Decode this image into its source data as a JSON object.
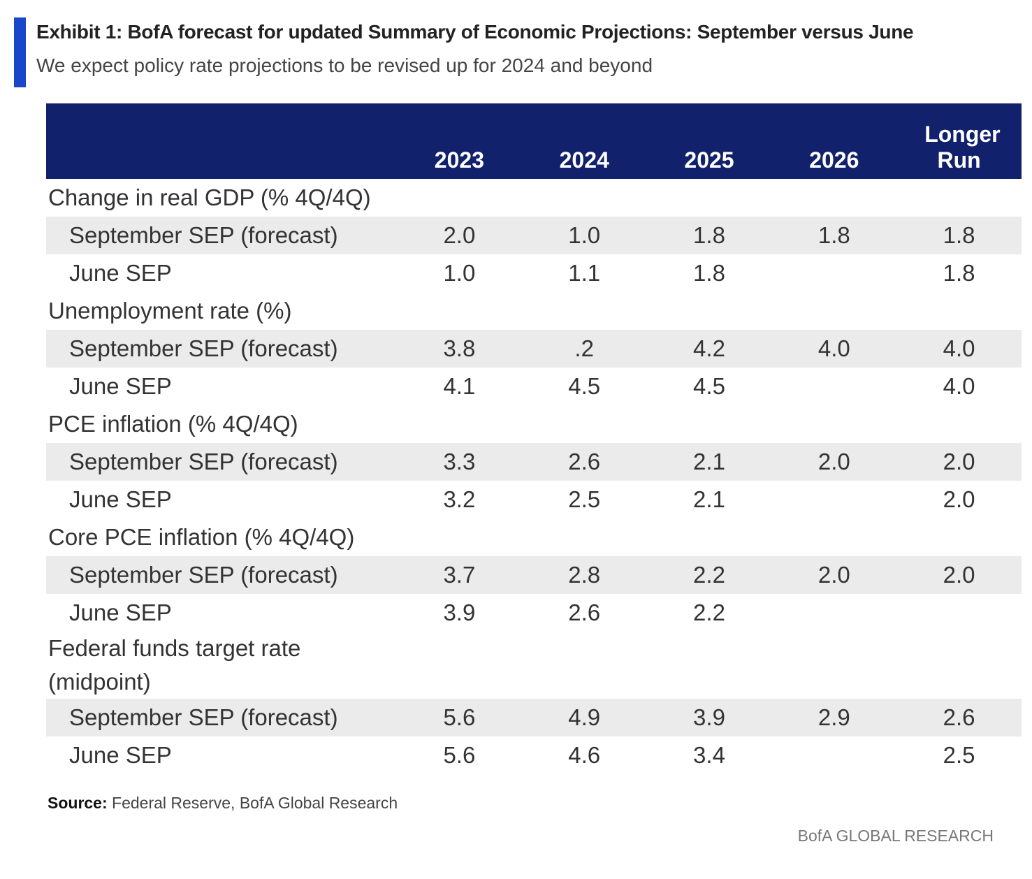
{
  "header": {
    "title": "Exhibit 1: BofA forecast for updated Summary of Economic Projections: September versus June",
    "subtitle": "We expect policy rate projections to be revised up for 2024 and beyond"
  },
  "table": {
    "columns": [
      "2023",
      "2024",
      "2025",
      "2026",
      "Longer Run"
    ],
    "sections": [
      {
        "label": "Change in real GDP (% 4Q/4Q)",
        "rows": [
          {
            "label": "September SEP (forecast)",
            "values": [
              "2.0",
              "1.0",
              "1.8",
              "1.8",
              "1.8"
            ]
          },
          {
            "label": "June SEP",
            "values": [
              "1.0",
              "1.1",
              "1.8",
              null,
              "1.8"
            ]
          }
        ]
      },
      {
        "label": "Unemployment rate (%)",
        "rows": [
          {
            "label": "September SEP (forecast)",
            "values": [
              "3.8",
              ".2",
              "4.2",
              "4.0",
              "4.0"
            ]
          },
          {
            "label": "June SEP",
            "values": [
              "4.1",
              "4.5",
              "4.5",
              null,
              "4.0"
            ]
          }
        ]
      },
      {
        "label": "PCE inflation (% 4Q/4Q)",
        "rows": [
          {
            "label": "September SEP (forecast)",
            "values": [
              "3.3",
              "2.6",
              "2.1",
              "2.0",
              "2.0"
            ]
          },
          {
            "label": "June SEP",
            "values": [
              "3.2",
              "2.5",
              "2.1",
              null,
              "2.0"
            ]
          }
        ]
      },
      {
        "label": "Core PCE inflation (% 4Q/4Q)",
        "rows": [
          {
            "label": "September SEP (forecast)",
            "values": [
              "3.7",
              "2.8",
              "2.2",
              "2.0",
              "2.0"
            ]
          },
          {
            "label": "June SEP",
            "values": [
              "3.9",
              "2.6",
              "2.2",
              null,
              null
            ]
          }
        ]
      },
      {
        "label": "Federal funds target rate (midpoint)",
        "rows": [
          {
            "label": "September SEP (forecast)",
            "values": [
              "5.6",
              "4.9",
              "3.9",
              "2.9",
              "2.6"
            ]
          },
          {
            "label": "June SEP",
            "values": [
              "5.6",
              "4.6",
              "3.4",
              null,
              "2.5"
            ]
          }
        ]
      }
    ]
  },
  "source": {
    "label": "Source:",
    "text": "Federal Reserve, BofA Global Research"
  },
  "footer": "BofA GLOBAL RESEARCH"
}
